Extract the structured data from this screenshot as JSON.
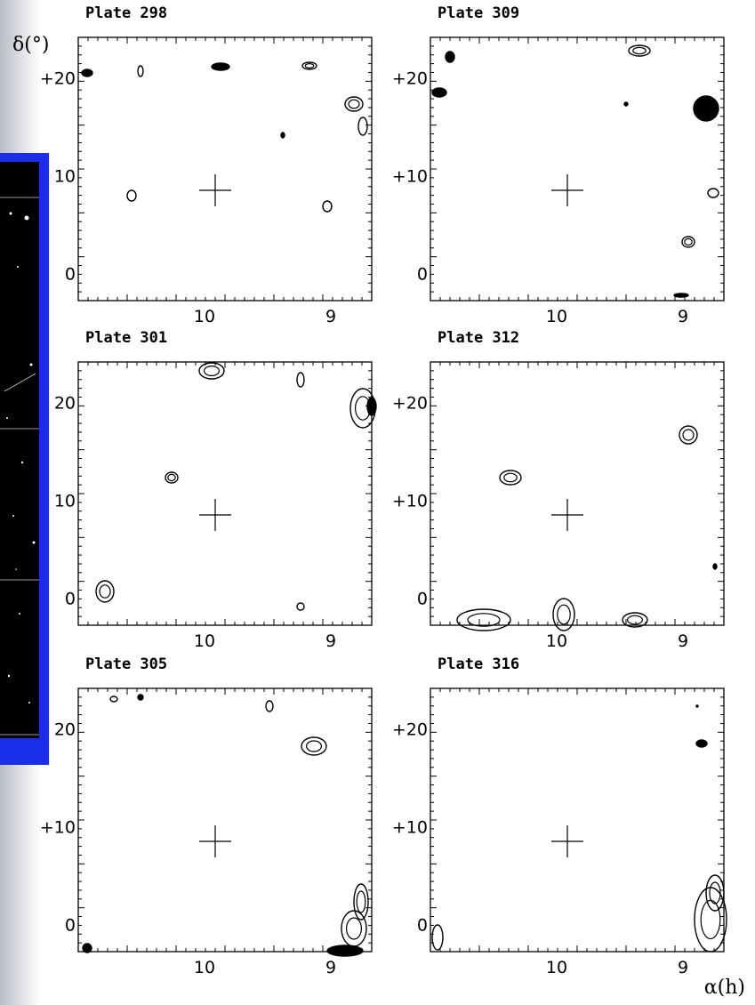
{
  "axis_labels": {
    "y": "δ(°)",
    "x": "α(h)"
  },
  "panels": [
    {
      "title": "Plate 298",
      "yticks": [
        "+20",
        "10",
        "0"
      ],
      "xticks": [
        "10",
        "9"
      ]
    },
    {
      "title": "Plate 309",
      "yticks": [
        "+20",
        "+10",
        "0"
      ],
      "xticks": [
        "10",
        "9"
      ]
    },
    {
      "title": "Plate 301",
      "yticks": [
        "20",
        "10",
        "0"
      ],
      "xticks": [
        "10",
        "9"
      ]
    },
    {
      "title": "Plate 312",
      "yticks": [
        "+20",
        "+10",
        "0"
      ],
      "xticks": [
        "10",
        "9"
      ]
    },
    {
      "title": "Plate 305",
      "yticks": [
        "20",
        "+10",
        "0"
      ],
      "xticks": [
        "10",
        "9"
      ]
    },
    {
      "title": "Plate 316",
      "yticks": [
        "+20",
        "+10",
        "0"
      ],
      "xticks": [
        "10",
        "9"
      ]
    }
  ]
}
